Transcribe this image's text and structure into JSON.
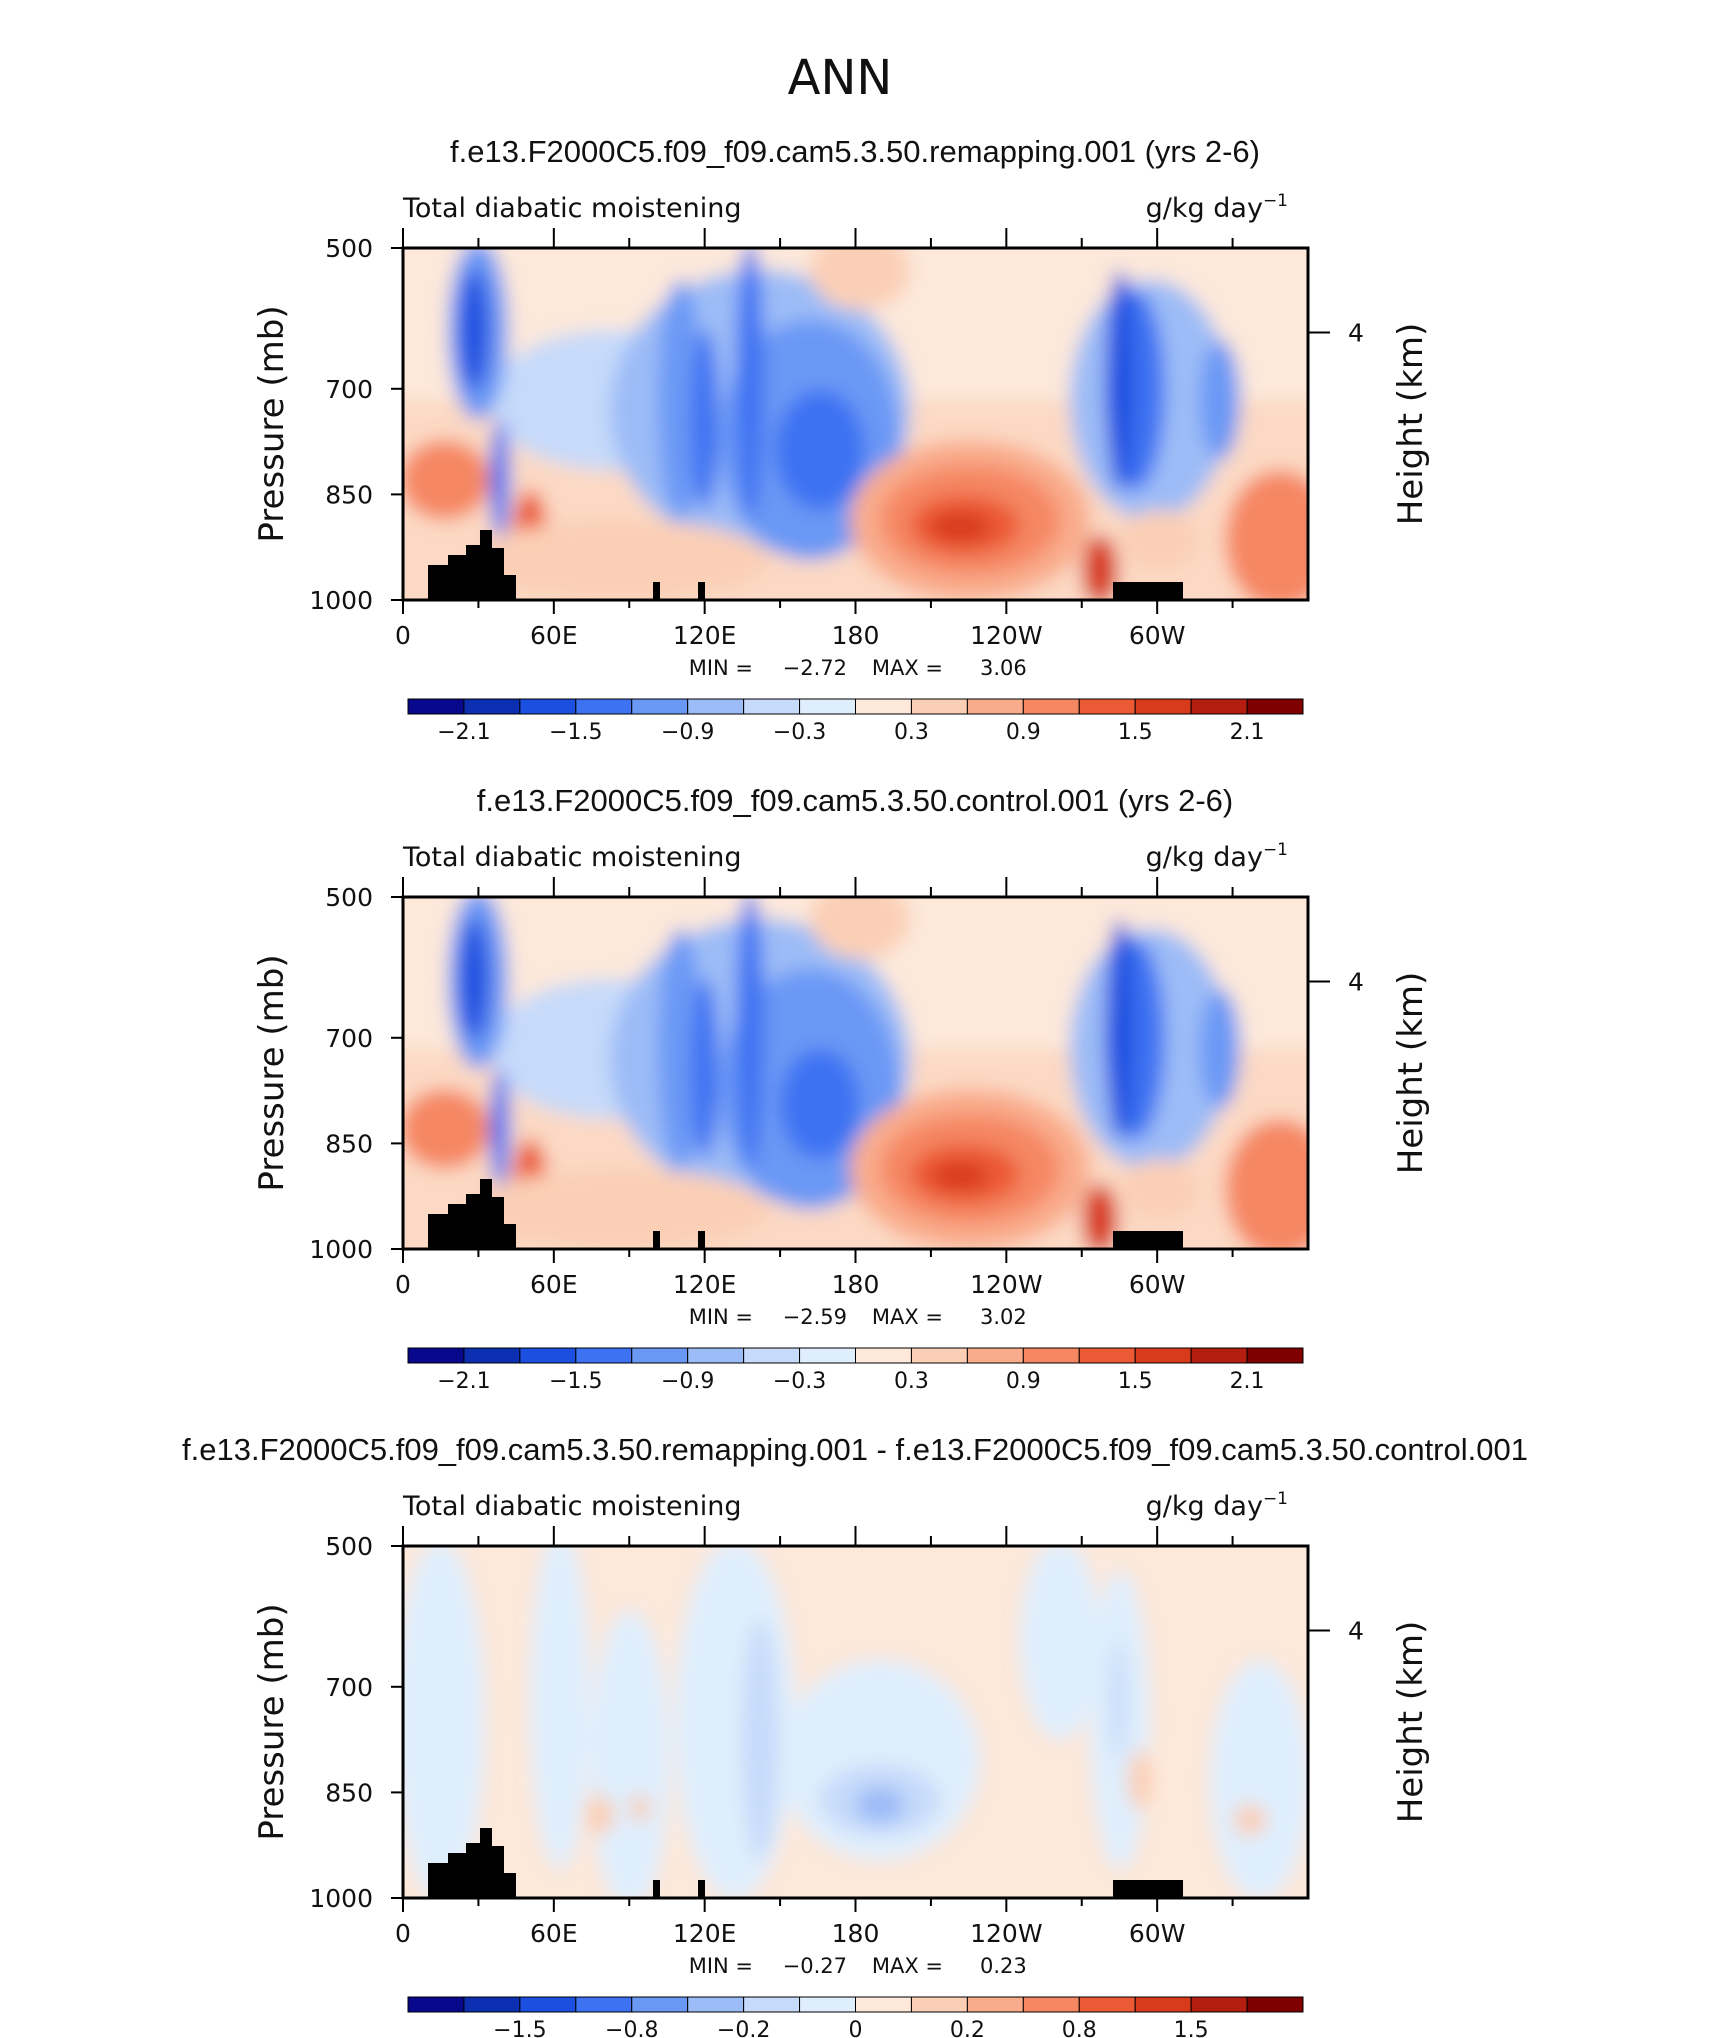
{
  "figure_title": "ANN",
  "chart_data": [
    {
      "type": "heatmap",
      "title": "f.e13.F2000C5.f09_f09.cam5.3.50.remapping.001 (yrs 2-6)",
      "left_label": "Total diabatic moistening",
      "units": "g/kg day",
      "units_exp": "−1",
      "ylabel": "Pressure (mb)",
      "ylabel_right": "Height (km)",
      "yticks": [
        "500",
        "700",
        "850",
        "1000"
      ],
      "yticks_right": [
        "4"
      ],
      "xticks": [
        "0",
        "60E",
        "120E",
        "180",
        "120W",
        "60W"
      ],
      "min_label": "MIN =",
      "min_value": "−2.72",
      "max_label": "MAX =",
      "max_value": "3.06",
      "colorbar_labels": [
        "−2.1",
        "−1.5",
        "−0.9",
        "−0.3",
        "0.3",
        "0.9",
        "1.5",
        "2.1"
      ]
    },
    {
      "type": "heatmap",
      "title": "f.e13.F2000C5.f09_f09.cam5.3.50.control.001 (yrs 2-6)",
      "left_label": "Total diabatic moistening",
      "units": "g/kg day",
      "units_exp": "−1",
      "ylabel": "Pressure (mb)",
      "ylabel_right": "Height (km)",
      "yticks": [
        "500",
        "700",
        "850",
        "1000"
      ],
      "yticks_right": [
        "4"
      ],
      "xticks": [
        "0",
        "60E",
        "120E",
        "180",
        "120W",
        "60W"
      ],
      "min_label": "MIN =",
      "min_value": "−2.59",
      "max_label": "MAX =",
      "max_value": "3.02",
      "colorbar_labels": [
        "−2.1",
        "−1.5",
        "−0.9",
        "−0.3",
        "0.3",
        "0.9",
        "1.5",
        "2.1"
      ]
    },
    {
      "type": "heatmap",
      "title": "f.e13.F2000C5.f09_f09.cam5.3.50.remapping.001 - f.e13.F2000C5.f09_f09.cam5.3.50.control.001",
      "left_label": "Total diabatic moistening",
      "units": "g/kg day",
      "units_exp": "−1",
      "ylabel": "Pressure (mb)",
      "ylabel_right": "Height (km)",
      "yticks": [
        "500",
        "700",
        "850",
        "1000"
      ],
      "yticks_right": [
        "4"
      ],
      "xticks": [
        "0",
        "60E",
        "120E",
        "180",
        "120W",
        "60W"
      ],
      "min_label": "MIN =",
      "min_value": "−0.27",
      "max_label": "MAX =",
      "max_value": "0.23",
      "colorbar_labels": [
        "−1.5",
        "−0.8",
        "−0.2",
        "0",
        "0.2",
        "0.8",
        "1.5"
      ]
    }
  ],
  "colors": {
    "scale": [
      "#08088c",
      "#0b2fb0",
      "#1a4fe0",
      "#3d72f2",
      "#6a98f5",
      "#9cbcf7",
      "#c6dafa",
      "#dfeefd",
      "#fde8da",
      "#fbcfb5",
      "#f9ac8c",
      "#f58763",
      "#ec5a35",
      "#d83a1c",
      "#b31e10",
      "#7f0000"
    ]
  }
}
